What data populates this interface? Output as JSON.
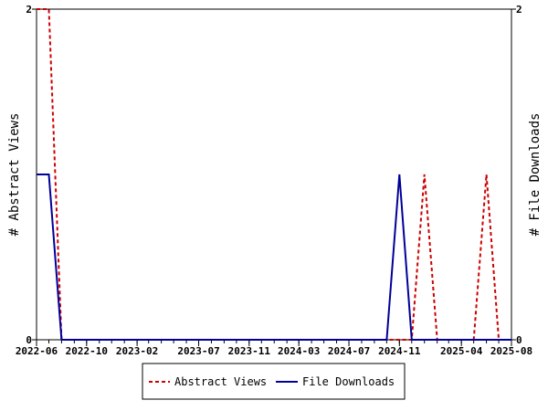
{
  "chart_data": {
    "type": "line",
    "y_left_label": "# Abstract Views",
    "y_right_label": "# File Downloads",
    "ylim": [
      0,
      2
    ],
    "y_left_ticks": [
      "0",
      "2"
    ],
    "y_right_ticks": [
      "0",
      "2"
    ],
    "x_ticks": [
      {
        "date": "2022-06-01",
        "label": "2022-06"
      },
      {
        "date": "2022-10-01",
        "label": "2022-10"
      },
      {
        "date": "2023-02-01",
        "label": "2023-02"
      },
      {
        "date": "2023-07-01",
        "label": "2023-07"
      },
      {
        "date": "2023-11-01",
        "label": "2023-11"
      },
      {
        "date": "2024-03-01",
        "label": "2024-03"
      },
      {
        "date": "2024-07-01",
        "label": "2024-07"
      },
      {
        "date": "2024-11-01",
        "label": "2024-11"
      },
      {
        "date": "2025-04-01",
        "label": "2025-04"
      },
      {
        "date": "2025-08-01",
        "label": "2025-08"
      }
    ],
    "xlim": [
      "2022-06-01",
      "2025-08-01"
    ],
    "series": [
      {
        "name": "Abstract Views",
        "color": "#cc0000",
        "dash": true,
        "points": [
          [
            "2022-06-01",
            2
          ],
          [
            "2022-07-01",
            2
          ],
          [
            "2022-08-01",
            0
          ],
          [
            "2024-11-01",
            0
          ],
          [
            "2024-12-01",
            0
          ],
          [
            "2025-01-01",
            1
          ],
          [
            "2025-02-01",
            0
          ],
          [
            "2025-05-01",
            0
          ],
          [
            "2025-06-01",
            1
          ],
          [
            "2025-07-01",
            0
          ],
          [
            "2025-08-01",
            0
          ]
        ]
      },
      {
        "name": "File Downloads",
        "color": "#000099",
        "dash": false,
        "points": [
          [
            "2022-06-01",
            1
          ],
          [
            "2022-07-01",
            1
          ],
          [
            "2022-08-01",
            0
          ],
          [
            "2024-10-01",
            0
          ],
          [
            "2024-11-01",
            1
          ],
          [
            "2024-12-01",
            0
          ],
          [
            "2025-08-01",
            0
          ]
        ]
      }
    ],
    "legend": {
      "position": "bottom-center",
      "entries": [
        "Abstract Views",
        "File Downloads"
      ]
    }
  }
}
